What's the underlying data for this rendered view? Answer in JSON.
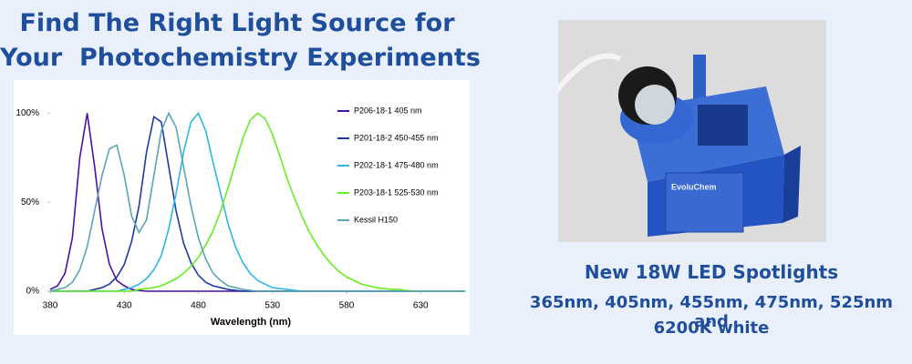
{
  "banner": {
    "headline": [
      "Find The Right Light Source for",
      "Your  Photochemistry Experiments"
    ],
    "product_title": "New 18W LED Spotlights",
    "product_subtitle": [
      "365nm, 405nm, 455nm, 475nm, 525nm and",
      "6200K white"
    ]
  },
  "product_image": {
    "label": "EvoluChem"
  },
  "chart_data": {
    "type": "line",
    "x_label": "Wavelength (nm)",
    "x": [
      380,
      385,
      390,
      395,
      400,
      405,
      410,
      415,
      420,
      425,
      430,
      435,
      440,
      445,
      450,
      455,
      460,
      465,
      470,
      475,
      480,
      485,
      490,
      495,
      500,
      505,
      510,
      515,
      520,
      525,
      530,
      535,
      540,
      545,
      550,
      555,
      560,
      565,
      570,
      575,
      580,
      585,
      590,
      595,
      600,
      605,
      610,
      615,
      620,
      625,
      630,
      635,
      640,
      645,
      650,
      655,
      660
    ],
    "xlim": [
      380,
      660
    ],
    "xticks": [
      380,
      430,
      480,
      530,
      580,
      630
    ],
    "ylim": [
      0,
      115
    ],
    "yticks": [
      {
        "value": 0,
        "label": "0%"
      },
      {
        "value": 50,
        "label": "50%"
      },
      {
        "value": 100,
        "label": "100%"
      }
    ],
    "series": [
      {
        "name": "P206-18-1 405 nm",
        "color": "#4a12a4",
        "values": [
          1,
          3,
          10,
          30,
          75,
          100,
          70,
          35,
          15,
          6,
          3,
          1,
          0.5,
          0,
          0,
          0,
          0,
          0,
          0,
          0,
          0,
          0,
          0,
          0,
          0,
          0,
          0,
          0,
          0,
          0,
          0,
          0,
          0,
          0,
          0,
          0,
          0,
          0,
          0,
          0,
          0,
          0,
          0,
          0,
          0,
          0,
          0,
          0,
          0,
          0,
          0,
          0,
          0,
          0,
          0,
          0,
          0
        ]
      },
      {
        "name": "P201-18-2 450-455 nm",
        "color": "#1c3aa6",
        "values": [
          0,
          0,
          0,
          0,
          0,
          0,
          1,
          2,
          4,
          8,
          15,
          28,
          48,
          78,
          98,
          95,
          70,
          45,
          27,
          16,
          9,
          5,
          3,
          2,
          1,
          0.5,
          0,
          0,
          0,
          0,
          0,
          0,
          0,
          0,
          0,
          0,
          0,
          0,
          0,
          0,
          0,
          0,
          0,
          0,
          0,
          0,
          0,
          0,
          0,
          0,
          0,
          0,
          0,
          0,
          0,
          0,
          0
        ]
      },
      {
        "name": "P202-18-1 475-480 nm",
        "color": "#2cb6ea",
        "values": [
          0,
          0,
          0,
          0,
          0,
          0,
          0,
          0,
          0,
          0,
          1,
          2,
          4,
          7,
          12,
          20,
          35,
          55,
          78,
          95,
          100,
          90,
          72,
          55,
          38,
          25,
          16,
          10,
          6,
          4,
          2,
          1.5,
          1,
          0.5,
          0,
          0,
          0,
          0,
          0,
          0,
          0,
          0,
          0,
          0,
          0,
          0,
          0,
          0,
          0,
          0,
          0,
          0,
          0,
          0,
          0,
          0,
          0
        ]
      },
      {
        "name": "P203-18-1 525-530 nm",
        "color": "#66ee22",
        "values": [
          0,
          0,
          0,
          0,
          0,
          0,
          0,
          0,
          0,
          0,
          0,
          0,
          1,
          1.5,
          2,
          3,
          5,
          7,
          10,
          14,
          19,
          26,
          34,
          45,
          58,
          72,
          86,
          96,
          100,
          97,
          88,
          76,
          63,
          52,
          42,
          33,
          26,
          20,
          15,
          11,
          8,
          6,
          4,
          3,
          2,
          1.5,
          1,
          1,
          0.5,
          0,
          0,
          0,
          0,
          0,
          0,
          0,
          0
        ]
      },
      {
        "name": "Kessil H150",
        "color": "#5aa6b2",
        "values": [
          0,
          1,
          2,
          5,
          12,
          25,
          45,
          65,
          80,
          82,
          65,
          42,
          33,
          40,
          65,
          90,
          100,
          92,
          70,
          48,
          30,
          18,
          10,
          6,
          3,
          2,
          1,
          0.5,
          0,
          0,
          0,
          0,
          0,
          0,
          0,
          0,
          0,
          0,
          0,
          0,
          0,
          0,
          0,
          0,
          0,
          0,
          0,
          0,
          0,
          0,
          0,
          0,
          0,
          0,
          0,
          0,
          0
        ]
      }
    ]
  }
}
